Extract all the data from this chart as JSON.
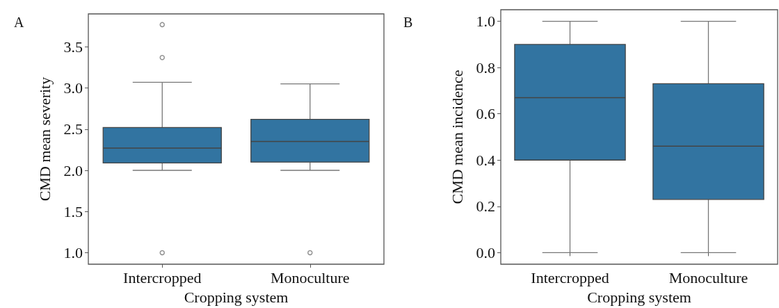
{
  "chart_data": [
    {
      "type": "box",
      "annotations": [
        "A"
      ],
      "xlabel": "Cropping system",
      "ylabel": "CMD mean severity",
      "categories": [
        "Intercropped",
        "Monoculture"
      ],
      "color": "#3274a1",
      "grid": false,
      "ylim": [
        0.86,
        3.9
      ],
      "yticks": [
        {
          "value": 1,
          "label": "1.0"
        },
        1.5,
        {
          "value": 2,
          "label": "2.0"
        },
        2.5,
        {
          "value": 3,
          "label": "3.0"
        },
        3.5
      ],
      "boxes": [
        {
          "low": 2.0,
          "q1": 2.09,
          "median": 2.27,
          "q3": 2.52,
          "high": 3.07,
          "outliers": [
            1.0,
            3.37,
            3.77
          ]
        },
        {
          "low": 2.0,
          "q1": 2.1,
          "median": 2.35,
          "q3": 2.62,
          "high": 3.05,
          "outliers": [
            1.0
          ]
        }
      ]
    },
    {
      "type": "box",
      "annotations": [
        "B"
      ],
      "xlabel": "Cropping system",
      "ylabel": "CMD mean incidence",
      "categories": [
        "Intercropped",
        "Monoculture"
      ],
      "color": "#3274a1",
      "grid": false,
      "ylim": [
        -0.05,
        1.05
      ],
      "yticks": [
        {
          "value": 0,
          "label": "0.0"
        },
        0.2,
        0.4,
        0.6,
        0.8,
        {
          "value": 1,
          "label": "1.0"
        }
      ],
      "boxes": [
        {
          "low": 0,
          "q1": 0.4,
          "median": 0.67,
          "q3": 0.9,
          "high": 1.0
        },
        {
          "low": 0,
          "q1": 0.23,
          "median": 0.46,
          "q3": 0.73,
          "high": 1.0
        }
      ]
    }
  ]
}
